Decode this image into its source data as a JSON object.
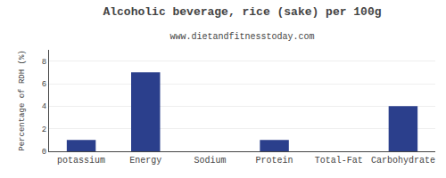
{
  "chart_data": {
    "type": "bar",
    "title": "Alcoholic beverage, rice (sake) per 100g",
    "subtitle": "www.dietandfitnesstoday.com",
    "categories": [
      "potassium",
      "Energy",
      "Sodium",
      "Protein",
      "Total-Fat",
      "Carbohydrate"
    ],
    "values": [
      1.0,
      7.0,
      0.0,
      1.0,
      0.0,
      4.0
    ],
    "color": "#2b3f8c",
    "ylabel": "Percentage of RDH (%)",
    "ylim": [
      0,
      9
    ],
    "yticks": [
      0,
      2,
      4,
      6,
      8
    ],
    "grid": true
  }
}
